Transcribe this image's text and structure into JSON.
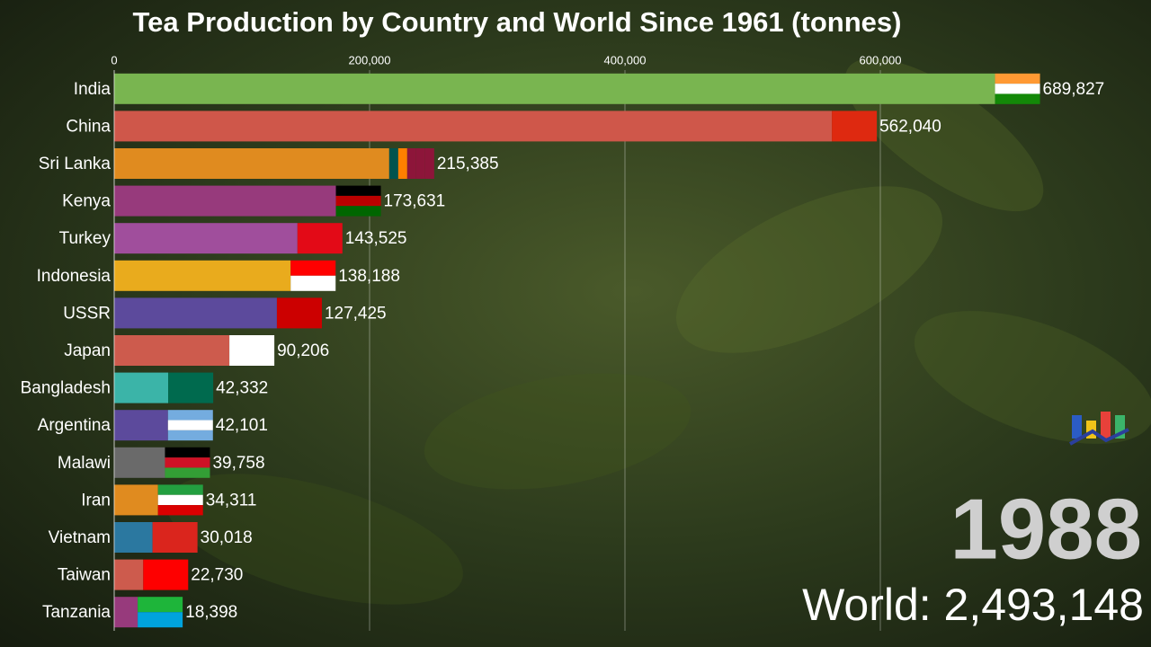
{
  "chart_data": {
    "type": "bar",
    "orientation": "horizontal",
    "title": "Tea Production by Country and World Since 1961 (tonnes)",
    "categories": [
      "India",
      "China",
      "Sri Lanka",
      "Kenya",
      "Turkey",
      "Indonesia",
      "USSR",
      "Japan",
      "Bangladesh",
      "Argentina",
      "Malawi",
      "Iran",
      "Vietnam",
      "Taiwan",
      "Tanzania"
    ],
    "values": [
      689827,
      562040,
      215385,
      173631,
      143525,
      138188,
      127425,
      90206,
      42332,
      42101,
      39758,
      34311,
      30018,
      22730,
      18398
    ],
    "value_labels": [
      "689,827",
      "562,040",
      "215,385",
      "173,631",
      "143,525",
      "138,188",
      "127,425",
      "90,206",
      "42,332",
      "42,101",
      "39,758",
      "34,311",
      "30,018",
      "22,730",
      "18,398"
    ],
    "colors": [
      "#79b550",
      "#cf574a",
      "#e08b1f",
      "#973a7c",
      "#a04e9c",
      "#e9ab1d",
      "#5c4a9c",
      "#cd5b4d",
      "#3bb4a8",
      "#5c4a9c",
      "#6a6a6a",
      "#e08b1f",
      "#2b78a0",
      "#cd5b4d",
      "#973a7c"
    ],
    "xlim": [
      0,
      800000
    ],
    "xticks": [
      0,
      {
        "value": 200000,
        "label": "200,000"
      },
      {
        "value": 400000,
        "label": "400,000"
      },
      {
        "value": 600000,
        "label": "600,000"
      }
    ],
    "grid": true,
    "year": "1988",
    "world_label": "World: 2,493,148"
  }
}
